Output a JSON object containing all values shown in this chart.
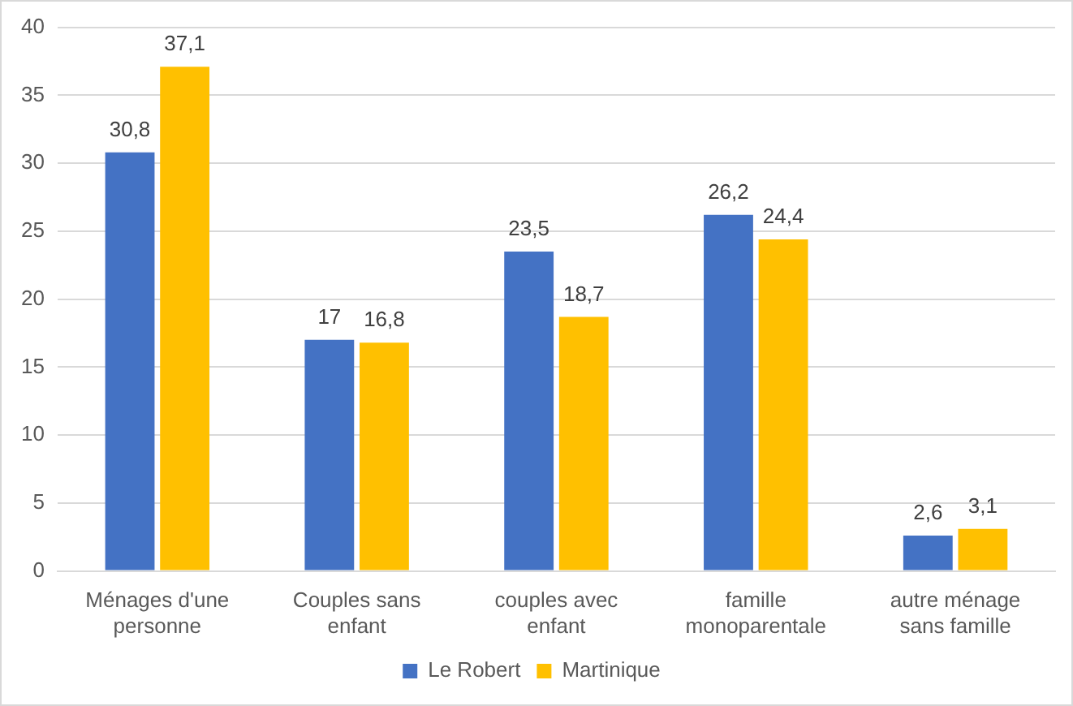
{
  "chart_data": {
    "type": "bar",
    "categories": [
      "Ménages d'une personne",
      "Couples sans enfant",
      "couples avec enfant",
      "famille monoparentale",
      "autre ménage sans famille"
    ],
    "series": [
      {
        "name": "Le Robert",
        "color": "#4472c4",
        "values": [
          30.8,
          17,
          23.5,
          26.2,
          2.6
        ],
        "value_labels": [
          "30,8",
          "17",
          "23,5",
          "26,2",
          "2,6"
        ]
      },
      {
        "name": "Martinique",
        "color": "#ffc000",
        "values": [
          37.1,
          16.8,
          18.7,
          24.4,
          3.1
        ],
        "value_labels": [
          "37,1",
          "16,8",
          "18,7",
          "24,4",
          "3,1"
        ]
      }
    ],
    "ylim": [
      0,
      40
    ],
    "yticks": [
      0,
      5,
      10,
      15,
      20,
      25,
      30,
      35,
      40
    ],
    "grid": "y",
    "legend": "bottom"
  }
}
